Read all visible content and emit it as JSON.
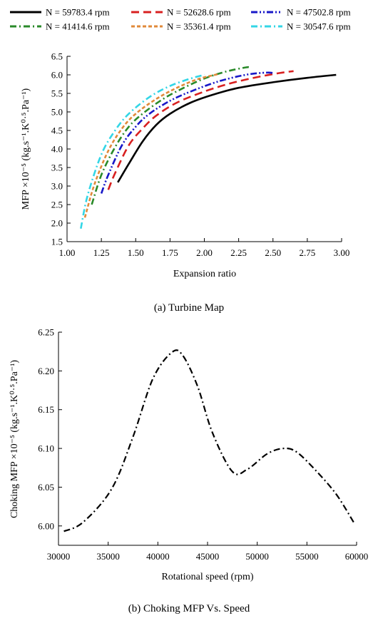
{
  "chart_data": [
    {
      "type": "line",
      "caption": "(a) Turbine Map",
      "xlabel": "Expansion ratio",
      "ylabel": "MFP ×10⁻⁵ (kg.s⁻¹.K⁰·⁵.Pa⁻¹)",
      "xlim": [
        1.0,
        3.0
      ],
      "ylim": [
        1.5,
        6.5
      ],
      "xticks": [
        "1.00",
        "1.25",
        "1.50",
        "1.75",
        "2.00",
        "2.25",
        "2.50",
        "2.75",
        "3.00"
      ],
      "yticks": [
        "1.5",
        "2.0",
        "2.5",
        "3.0",
        "3.5",
        "4.0",
        "4.5",
        "5.0",
        "5.5",
        "6.0",
        "6.5"
      ],
      "grid": false,
      "legend": "top",
      "series": [
        {
          "name": "N = 59783.4 rpm",
          "color": "#000000",
          "dash": "solid",
          "x": [
            1.37,
            1.45,
            1.55,
            1.65,
            1.75,
            1.9,
            2.05,
            2.25,
            2.5,
            2.75,
            2.96
          ],
          "y": [
            3.1,
            3.6,
            4.2,
            4.65,
            4.95,
            5.25,
            5.45,
            5.65,
            5.8,
            5.92,
            6.0
          ]
        },
        {
          "name": "N = 52628.6 rpm",
          "color": "#d82020",
          "dash": "dash",
          "x": [
            1.3,
            1.35,
            1.45,
            1.55,
            1.65,
            1.8,
            2.0,
            2.2,
            2.4,
            2.55,
            2.65
          ],
          "y": [
            2.9,
            3.35,
            4.1,
            4.55,
            4.9,
            5.25,
            5.55,
            5.78,
            5.95,
            6.05,
            6.1
          ]
        },
        {
          "name": "N = 47502.8 rpm",
          "color": "#1818c8",
          "dash": "dashdotdot",
          "x": [
            1.25,
            1.3,
            1.4,
            1.5,
            1.6,
            1.75,
            1.9,
            2.1,
            2.3,
            2.45,
            2.5
          ],
          "y": [
            2.8,
            3.3,
            4.1,
            4.6,
            4.95,
            5.3,
            5.55,
            5.82,
            6.0,
            6.06,
            6.05
          ]
        },
        {
          "name": "N = 41414.6 rpm",
          "color": "#2a8a2a",
          "dash": "dashdot",
          "x": [
            1.18,
            1.25,
            1.35,
            1.45,
            1.55,
            1.7,
            1.85,
            2.0,
            2.15,
            2.3,
            2.33
          ],
          "y": [
            2.5,
            3.3,
            4.05,
            4.6,
            4.95,
            5.35,
            5.65,
            5.9,
            6.08,
            6.2,
            6.2
          ]
        },
        {
          "name": "N = 35361.4 rpm",
          "color": "#e08a3a",
          "dash": "shortdash",
          "x": [
            1.13,
            1.2,
            1.3,
            1.4,
            1.5,
            1.65,
            1.8,
            1.95,
            2.1
          ],
          "y": [
            2.15,
            3.05,
            3.95,
            4.55,
            4.95,
            5.35,
            5.65,
            5.88,
            6.02
          ]
        },
        {
          "name": "N = 30547.6 rpm",
          "color": "#33d6e6",
          "dash": "dashdot",
          "x": [
            1.1,
            1.15,
            1.25,
            1.35,
            1.45,
            1.6,
            1.75,
            1.9,
            2.0
          ],
          "y": [
            1.85,
            2.75,
            3.85,
            4.5,
            4.95,
            5.4,
            5.7,
            5.9,
            6.0
          ]
        }
      ]
    },
    {
      "type": "line",
      "caption": "(b) Choking MFP Vs. Speed",
      "xlabel": "Rotational speed (rpm)",
      "ylabel": "Choking MFP ×10⁻⁵ (kg.s⁻¹.K⁰·⁵.Pa⁻¹)",
      "xlim": [
        30000,
        60000
      ],
      "ylim": [
        5.975,
        6.25
      ],
      "xticks": [
        "30000",
        "35000",
        "40000",
        "45000",
        "50000",
        "55000",
        "60000"
      ],
      "yticks": [
        "6.00",
        "6.05",
        "6.10",
        "6.15",
        "6.20",
        "6.25"
      ],
      "grid": false,
      "series": [
        {
          "color": "#000000",
          "dash": "dashdot",
          "x": [
            30547.6,
            32500,
            35361.4,
            37500,
            39500,
            41414.6,
            42500,
            44000,
            45500,
            47502.8,
            49000,
            51000,
            52628.6,
            54000,
            56000,
            58000,
            59783.4
          ],
          "y": [
            5.993,
            6.005,
            6.048,
            6.115,
            6.19,
            6.224,
            6.22,
            6.18,
            6.12,
            6.07,
            6.073,
            6.093,
            6.1,
            6.095,
            6.07,
            6.04,
            6.003
          ]
        }
      ]
    }
  ]
}
